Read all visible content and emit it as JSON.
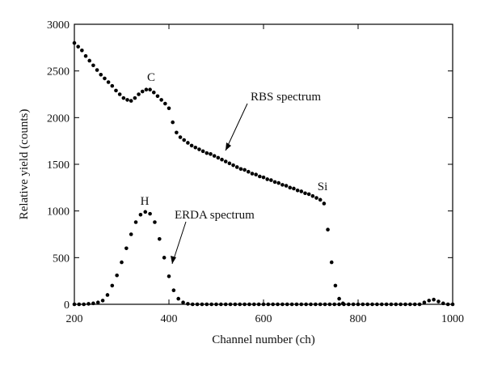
{
  "chart_data": {
    "type": "scatter",
    "x_label": "Channel number (ch)",
    "y_label": "Relative yield (counts)",
    "xlim": [
      200,
      1000
    ],
    "xticks": [
      200,
      400,
      600,
      800,
      1000
    ],
    "ylim": [
      0,
      3000
    ],
    "yticks": [
      0,
      500,
      1000,
      1500,
      2000,
      2500,
      3000
    ],
    "annotations": [
      "C",
      "Si",
      "H"
    ],
    "series": [
      {
        "name": "RBS spectrum",
        "color": "#000000",
        "x": [
          200,
          208,
          216,
          224,
          232,
          240,
          248,
          256,
          264,
          272,
          280,
          288,
          296,
          304,
          312,
          320,
          328,
          336,
          344,
          352,
          360,
          368,
          376,
          384,
          392,
          400,
          408,
          416,
          424,
          432,
          440,
          448,
          456,
          464,
          472,
          480,
          488,
          496,
          504,
          512,
          520,
          528,
          536,
          544,
          552,
          560,
          568,
          576,
          584,
          592,
          600,
          608,
          616,
          624,
          632,
          640,
          648,
          656,
          664,
          672,
          680,
          688,
          696,
          704,
          712,
          720,
          728,
          736,
          744,
          752,
          760,
          768
        ],
        "values": [
          2800,
          2760,
          2720,
          2660,
          2610,
          2560,
          2510,
          2460,
          2420,
          2380,
          2340,
          2290,
          2250,
          2210,
          2190,
          2180,
          2210,
          2250,
          2280,
          2300,
          2300,
          2270,
          2230,
          2190,
          2150,
          2100,
          1950,
          1840,
          1790,
          1760,
          1730,
          1700,
          1680,
          1660,
          1640,
          1620,
          1610,
          1590,
          1570,
          1550,
          1530,
          1510,
          1490,
          1470,
          1450,
          1440,
          1420,
          1400,
          1390,
          1370,
          1360,
          1340,
          1330,
          1310,
          1300,
          1280,
          1270,
          1250,
          1240,
          1220,
          1210,
          1190,
          1180,
          1160,
          1140,
          1120,
          1080,
          800,
          450,
          200,
          60,
          10
        ]
      },
      {
        "name": "ERDA spectrum",
        "color": "#000000",
        "x": [
          200,
          210,
          220,
          230,
          240,
          250,
          260,
          270,
          280,
          290,
          300,
          310,
          320,
          330,
          340,
          350,
          360,
          370,
          380,
          390,
          400,
          410,
          420,
          430,
          440,
          450,
          460,
          470,
          480,
          490,
          500,
          510,
          520,
          530,
          540,
          550,
          560,
          570,
          580,
          590,
          600,
          610,
          620,
          630,
          640,
          650,
          660,
          670,
          680,
          690,
          700,
          710,
          720,
          730,
          740,
          750,
          760,
          770,
          780,
          790,
          800,
          810,
          820,
          830,
          840,
          850,
          860,
          870,
          880,
          890,
          900,
          910,
          920,
          930,
          940,
          950,
          960,
          970,
          980,
          990,
          1000
        ],
        "values": [
          0,
          0,
          0,
          5,
          10,
          20,
          40,
          100,
          200,
          310,
          450,
          600,
          750,
          880,
          960,
          990,
          970,
          880,
          700,
          500,
          300,
          150,
          60,
          20,
          5,
          0,
          0,
          0,
          0,
          0,
          0,
          0,
          0,
          0,
          0,
          0,
          0,
          0,
          0,
          0,
          0,
          0,
          0,
          0,
          0,
          0,
          0,
          0,
          0,
          0,
          0,
          0,
          0,
          0,
          0,
          0,
          0,
          0,
          0,
          0,
          0,
          0,
          0,
          0,
          0,
          0,
          0,
          0,
          0,
          0,
          0,
          0,
          0,
          0,
          20,
          40,
          50,
          30,
          10,
          0,
          0
        ]
      }
    ]
  }
}
